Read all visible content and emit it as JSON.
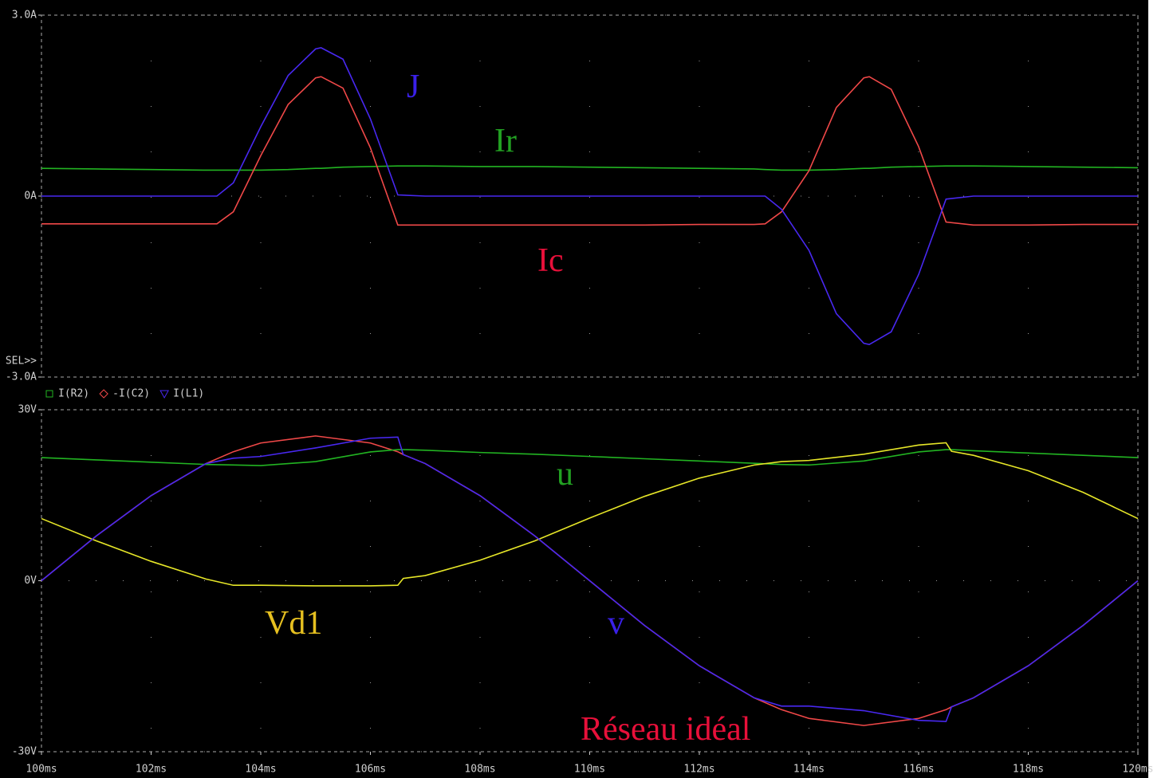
{
  "chart_data": [
    {
      "type": "line",
      "cursor_label": "SEL>>",
      "x": [
        100,
        101,
        102,
        103,
        103.2,
        103.5,
        104,
        104.5,
        105,
        105.1,
        105.5,
        106,
        106.5,
        107,
        108,
        109,
        110,
        111,
        112,
        113,
        113.2,
        113.5,
        114,
        114.5,
        115,
        115.1,
        115.5,
        116,
        116.5,
        117,
        118,
        119,
        120
      ],
      "xlim": [
        100,
        120
      ],
      "ylim": [
        -3,
        3
      ],
      "yticks": [
        {
          "value": -3,
          "label": "-3.0A"
        },
        {
          "value": 0,
          "label": "0A"
        },
        {
          "value": 3,
          "label": "3.0A"
        }
      ],
      "grid": true,
      "series": [
        {
          "name": "I(R2)",
          "color": "#22b422",
          "values": [
            0.46,
            0.45,
            0.44,
            0.43,
            0.43,
            0.43,
            0.43,
            0.44,
            0.46,
            0.46,
            0.48,
            0.49,
            0.5,
            0.5,
            0.49,
            0.49,
            0.48,
            0.47,
            0.46,
            0.45,
            0.44,
            0.43,
            0.43,
            0.44,
            0.46,
            0.46,
            0.48,
            0.49,
            0.5,
            0.5,
            0.49,
            0.48,
            0.47
          ]
        },
        {
          "name": "-I(C2)",
          "color": "#f04848",
          "values": [
            -0.46,
            -0.46,
            -0.46,
            -0.46,
            -0.46,
            -0.26,
            0.67,
            1.52,
            1.96,
            1.98,
            1.79,
            0.8,
            -0.48,
            -0.48,
            -0.48,
            -0.48,
            -0.48,
            -0.48,
            -0.47,
            -0.47,
            -0.46,
            -0.26,
            0.42,
            1.47,
            1.96,
            1.98,
            1.77,
            0.82,
            -0.43,
            -0.48,
            -0.48,
            -0.47,
            -0.47
          ]
        },
        {
          "name": "I(L1)",
          "color": "#4828f0",
          "values": [
            0,
            0,
            0,
            0,
            0,
            0.22,
            1.15,
            2.0,
            2.44,
            2.46,
            2.27,
            1.28,
            0.02,
            0,
            0,
            0,
            0,
            0,
            0,
            0,
            0,
            -0.22,
            -0.9,
            -1.95,
            -2.44,
            -2.46,
            -2.25,
            -1.3,
            -0.05,
            0,
            0,
            0,
            0
          ]
        }
      ],
      "annotations": [
        {
          "text": "J",
          "color": "#3a20e8"
        },
        {
          "text": "Ir",
          "color": "#22a022"
        },
        {
          "text": "Ic",
          "color": "#e8103a"
        }
      ]
    },
    {
      "type": "line",
      "x": [
        100,
        101,
        102,
        103,
        103.5,
        104,
        105,
        106,
        106.5,
        106.6,
        107,
        108,
        109,
        110,
        111,
        112,
        113,
        113.5,
        114,
        115,
        116,
        116.5,
        116.6,
        117,
        118,
        119,
        120
      ],
      "xlim": [
        100,
        120
      ],
      "xticks": [
        {
          "value": 100,
          "label": "100ms"
        },
        {
          "value": 102,
          "label": "102ms"
        },
        {
          "value": 104,
          "label": "104ms"
        },
        {
          "value": 106,
          "label": "106ms"
        },
        {
          "value": 108,
          "label": "108ms"
        },
        {
          "value": 110,
          "label": "110ms"
        },
        {
          "value": 112,
          "label": "112ms"
        },
        {
          "value": 114,
          "label": "114ms"
        },
        {
          "value": 116,
          "label": "116ms"
        },
        {
          "value": 118,
          "label": "118ms"
        },
        {
          "value": 120,
          "label": "120ms"
        }
      ],
      "ylim": [
        -30,
        30
      ],
      "yticks": [
        {
          "value": -30,
          "label": "-30V"
        },
        {
          "value": 0,
          "label": "0V"
        },
        {
          "value": 30,
          "label": "30V"
        }
      ],
      "grid": true,
      "series": [
        {
          "color": "#f04848",
          "values": [
            0,
            7.85,
            14.93,
            20.55,
            22.63,
            24.16,
            25.4,
            24.16,
            22.63,
            22.13,
            20.55,
            14.93,
            7.85,
            0,
            -7.85,
            -14.93,
            -20.55,
            -22.63,
            -24.16,
            -25.4,
            -24.16,
            -22.63,
            -22.13,
            -20.55,
            -14.93,
            -7.85,
            0
          ]
        },
        {
          "color": "#22b422",
          "values": [
            21.6,
            21.2,
            20.8,
            20.4,
            20.3,
            20.2,
            20.9,
            22.6,
            23.0,
            23.0,
            22.9,
            22.5,
            22.2,
            21.8,
            21.4,
            21.0,
            20.6,
            20.4,
            20.3,
            21.0,
            22.6,
            23.0,
            23.0,
            22.8,
            22.4,
            22.0,
            21.6
          ]
        },
        {
          "color": "#e6e628",
          "values": [
            10.9,
            7.0,
            3.4,
            0.3,
            -0.8,
            -0.8,
            -0.9,
            -0.9,
            -0.8,
            0.4,
            0.9,
            3.6,
            7.0,
            11.0,
            14.8,
            18.0,
            20.3,
            20.9,
            21.1,
            22.2,
            23.8,
            24.2,
            22.7,
            22.0,
            19.3,
            15.5,
            10.9
          ]
        },
        {
          "color": "#4828f0",
          "values": [
            0,
            7.85,
            14.93,
            20.55,
            21.5,
            21.8,
            23.3,
            25.0,
            25.2,
            22.13,
            20.55,
            14.93,
            7.85,
            0,
            -7.85,
            -14.93,
            -20.55,
            -22.0,
            -22.0,
            -22.8,
            -24.5,
            -24.7,
            -22.13,
            -20.55,
            -14.93,
            -7.85,
            0
          ]
        }
      ],
      "annotations": [
        {
          "text": "u",
          "color": "#22a022"
        },
        {
          "text": "Vd1",
          "color": "#e6c020"
        },
        {
          "text": "v",
          "color": "#3a20e8"
        },
        {
          "text": "Réseau idéal",
          "color": "#e8103a"
        }
      ]
    }
  ]
}
